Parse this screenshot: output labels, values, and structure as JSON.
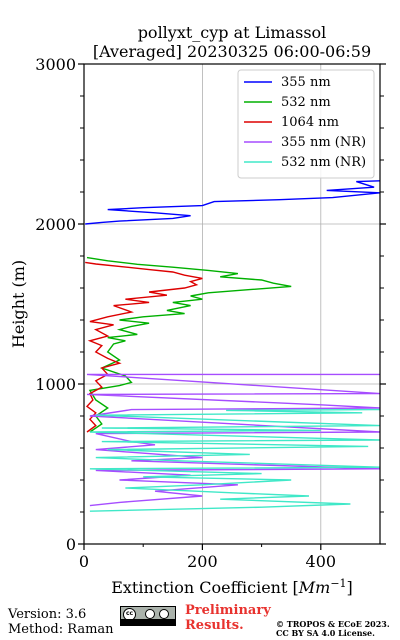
{
  "chart_data": {
    "type": "line",
    "title": "pollyxt_cyp at Limassol",
    "subtitle": "[Averaged] 20230325 06:00-06:59",
    "xlabel": "Extinction Coefficient [Mm^-1]",
    "ylabel": "Height (m)",
    "xlim": [
      0,
      500
    ],
    "ylim": [
      0,
      3000
    ],
    "xticks": [
      0,
      200,
      400
    ],
    "yticks": [
      0,
      1000,
      2000,
      3000
    ],
    "grid": true,
    "legend_position": "top-right",
    "series": [
      {
        "name": "355 nm",
        "color": "#0000ff",
        "points": [
          [
            2,
            2000
          ],
          [
            30,
            2010
          ],
          [
            60,
            2018
          ],
          [
            150,
            2035
          ],
          [
            180,
            2052
          ],
          [
            120,
            2070
          ],
          [
            40,
            2090
          ],
          [
            100,
            2102
          ],
          [
            200,
            2115
          ],
          [
            220,
            2140
          ],
          [
            330,
            2152
          ],
          [
            420,
            2165
          ],
          [
            500,
            2195
          ],
          [
            410,
            2210
          ],
          [
            490,
            2230
          ],
          [
            460,
            2265
          ],
          [
            500,
            2270
          ]
        ]
      },
      {
        "name": "532 nm",
        "color": "#00b000",
        "points": [
          [
            5,
            1790
          ],
          [
            40,
            1770
          ],
          [
            90,
            1748
          ],
          [
            150,
            1730
          ],
          [
            210,
            1710
          ],
          [
            260,
            1690
          ],
          [
            230,
            1670
          ],
          [
            300,
            1650
          ],
          [
            320,
            1630
          ],
          [
            350,
            1610
          ],
          [
            280,
            1590
          ],
          [
            210,
            1570
          ],
          [
            180,
            1550
          ],
          [
            200,
            1530
          ],
          [
            150,
            1510
          ],
          [
            180,
            1490
          ],
          [
            140,
            1460
          ],
          [
            170,
            1440
          ],
          [
            100,
            1420
          ],
          [
            60,
            1400
          ],
          [
            110,
            1380
          ],
          [
            80,
            1360
          ],
          [
            60,
            1340
          ],
          [
            90,
            1310
          ],
          [
            40,
            1290
          ],
          [
            70,
            1270
          ],
          [
            50,
            1250
          ],
          [
            40,
            1200
          ],
          [
            60,
            1150
          ],
          [
            30,
            1100
          ],
          [
            70,
            1050
          ],
          [
            80,
            1010
          ],
          [
            60,
            990
          ],
          [
            10,
            960
          ],
          [
            20,
            900
          ],
          [
            40,
            850
          ],
          [
            20,
            800
          ],
          [
            30,
            750
          ],
          [
            10,
            700
          ]
        ]
      },
      {
        "name": "1064 nm",
        "color": "#dd0000",
        "points": [
          [
            2,
            1760
          ],
          [
            20,
            1750
          ],
          [
            60,
            1735
          ],
          [
            110,
            1715
          ],
          [
            150,
            1700
          ],
          [
            170,
            1680
          ],
          [
            200,
            1660
          ],
          [
            180,
            1640
          ],
          [
            190,
            1620
          ],
          [
            170,
            1600
          ],
          [
            110,
            1575
          ],
          [
            140,
            1555
          ],
          [
            70,
            1530
          ],
          [
            110,
            1510
          ],
          [
            50,
            1490
          ],
          [
            80,
            1450
          ],
          [
            40,
            1420
          ],
          [
            10,
            1390
          ],
          [
            50,
            1370
          ],
          [
            20,
            1340
          ],
          [
            40,
            1300
          ],
          [
            10,
            1270
          ],
          [
            30,
            1240
          ],
          [
            20,
            1200
          ],
          [
            40,
            1160
          ],
          [
            60,
            1130
          ],
          [
            30,
            1100
          ],
          [
            40,
            1060
          ],
          [
            20,
            1020
          ],
          [
            30,
            980
          ],
          [
            10,
            940
          ],
          [
            15,
            900
          ],
          [
            5,
            860
          ],
          [
            20,
            820
          ],
          [
            10,
            780
          ],
          [
            20,
            740
          ],
          [
            5,
            700
          ]
        ]
      },
      {
        "name": "355 nm (NR)",
        "color": "#a64dff",
        "points": [
          [
            500,
            1060
          ],
          [
            5,
            1060
          ],
          [
            500,
            940
          ],
          [
            5,
            935
          ],
          [
            400,
            870
          ],
          [
            500,
            850
          ],
          [
            80,
            840
          ],
          [
            10,
            800
          ],
          [
            500,
            700
          ],
          [
            20,
            690
          ],
          [
            80,
            640
          ],
          [
            120,
            620
          ],
          [
            20,
            590
          ],
          [
            200,
            540
          ],
          [
            80,
            520
          ],
          [
            500,
            470
          ],
          [
            20,
            460
          ],
          [
            180,
            430
          ],
          [
            60,
            400
          ],
          [
            260,
            370
          ],
          [
            120,
            330
          ],
          [
            200,
            300
          ],
          [
            60,
            260
          ],
          [
            10,
            240
          ]
        ]
      },
      {
        "name": "532 nm (NR)",
        "color": "#40e8c8",
        "points": [
          [
            500,
            840
          ],
          [
            240,
            835
          ],
          [
            470,
            820
          ],
          [
            20,
            805
          ],
          [
            500,
            740
          ],
          [
            30,
            725
          ],
          [
            400,
            710
          ],
          [
            10,
            700
          ],
          [
            500,
            650
          ],
          [
            30,
            640
          ],
          [
            480,
            610
          ],
          [
            40,
            590
          ],
          [
            280,
            560
          ],
          [
            20,
            540
          ],
          [
            160,
            520
          ],
          [
            500,
            480
          ],
          [
            10,
            470
          ],
          [
            300,
            440
          ],
          [
            100,
            420
          ],
          [
            350,
            400
          ],
          [
            200,
            370
          ],
          [
            70,
            350
          ],
          [
            250,
            320
          ],
          [
            380,
            300
          ],
          [
            230,
            280
          ],
          [
            450,
            250
          ],
          [
            300,
            230
          ],
          [
            10,
            205
          ]
        ]
      }
    ]
  },
  "footer": {
    "version": "Version: 3.6",
    "method": "Method: Raman",
    "preliminary_line1": "Preliminary",
    "preliminary_line2": "Results.",
    "copyright_line1": "© TROPOS & ECoE 2023.",
    "copyright_line2": "CC BY SA 4.0 License."
  },
  "license_badge": {
    "icon": "cc-by-sa-icon",
    "color": "#aab2ab"
  }
}
